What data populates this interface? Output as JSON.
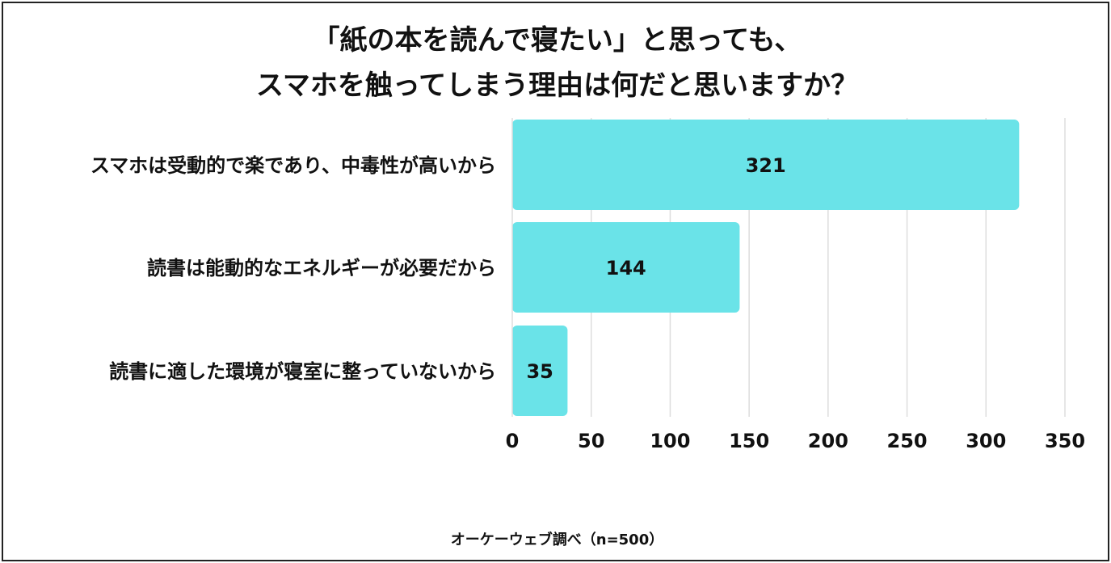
{
  "chart_data": {
    "type": "bar",
    "orientation": "horizontal",
    "title_lines": [
      "「紙の本を読んで寝たい」と思っても、",
      "スマホを触ってしまう理由は何だと思いますか？"
    ],
    "categories": [
      "スマホは受動的で楽であり、中毒性が高いから",
      "読書は能動的なエネルギーが必要だから",
      "読書に適した環境が寝室に整っていないから"
    ],
    "values": [
      321,
      144,
      35
    ],
    "data_labels": [
      "321",
      "144",
      "35"
    ],
    "xlim": [
      0,
      350
    ],
    "xticks": [
      "0",
      "50",
      "100",
      "150",
      "200",
      "250",
      "300",
      "350"
    ],
    "grid": true,
    "bar_color": "#6ae3e8",
    "grid_color": "#dddddd"
  },
  "footer": {
    "source": "オーケーウェブ調べ（n=500）"
  }
}
